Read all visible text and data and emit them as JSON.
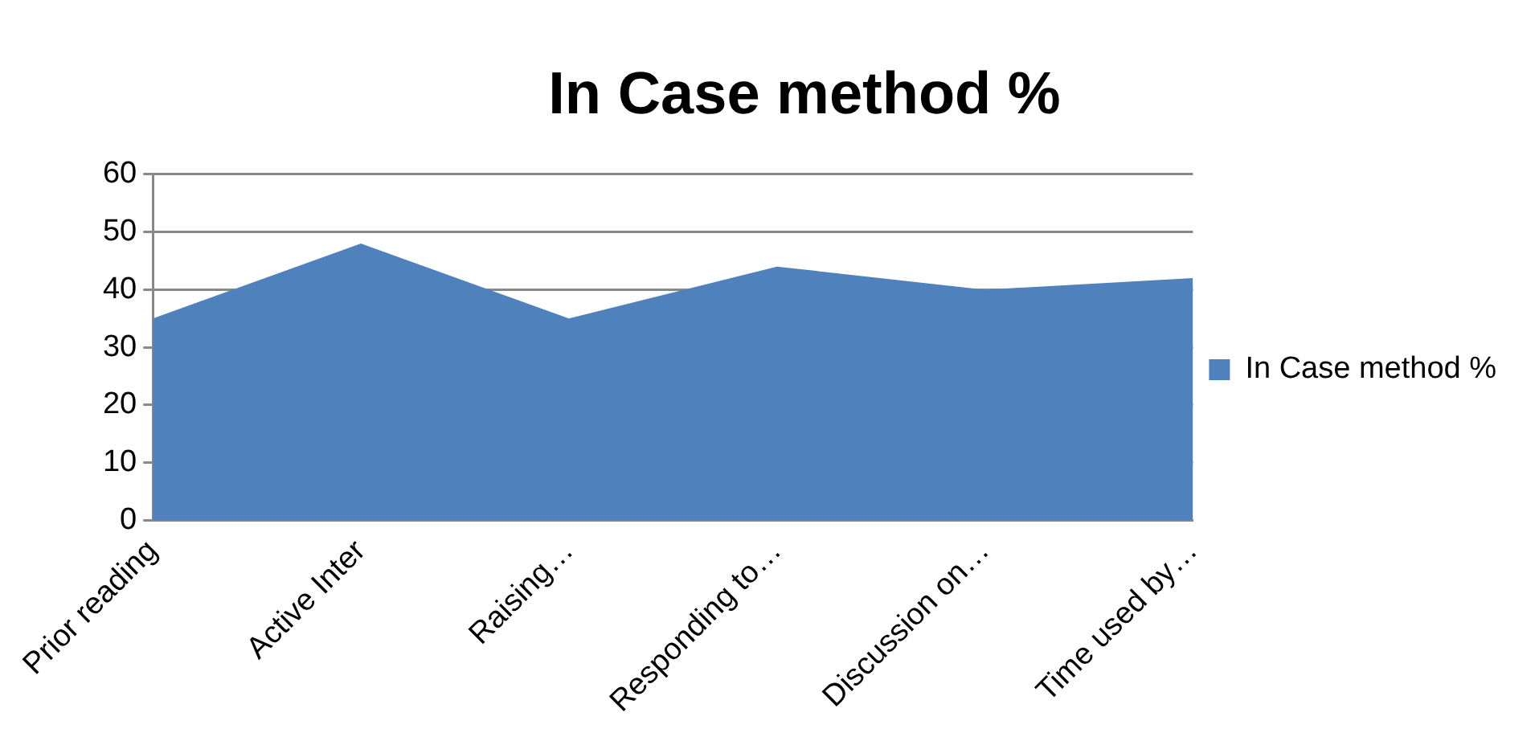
{
  "chart_data": {
    "type": "area",
    "title": "In Case method %",
    "categories": [
      "Prior reading",
      "Active Inter",
      "Raising…",
      "Responding to…",
      "Discussion on…",
      "Time used by…"
    ],
    "series": [
      {
        "name": "In Case method %",
        "color": "#4f81bd",
        "values": [
          35,
          48,
          35,
          44,
          40,
          42
        ]
      }
    ],
    "ylim": [
      0,
      60
    ],
    "yticks": [
      0,
      10,
      20,
      30,
      40,
      50,
      60
    ],
    "grid": "y",
    "legend": "right"
  }
}
